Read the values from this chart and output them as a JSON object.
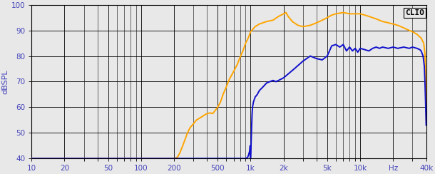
{
  "title": "",
  "ylabel": "dBSPL",
  "xlabel": "Hz",
  "clio_label": "CLIO",
  "xmin": 10,
  "xmax": 40000,
  "ymin": 40,
  "ymax": 100,
  "yticks": [
    40,
    50,
    60,
    70,
    80,
    90,
    100
  ],
  "xticks": [
    10,
    20,
    50,
    100,
    200,
    500,
    1000,
    2000,
    5000,
    10000,
    20000,
    40000
  ],
  "xticklabels": [
    "10",
    "20",
    "50",
    "100",
    "200",
    "500",
    "1k",
    "2k",
    "5k",
    "10k",
    "Hz",
    "40k"
  ],
  "background_color": "#e8e8e8",
  "grid_color": "#000000",
  "orange_color": "#FFA500",
  "blue_color": "#1010CC",
  "tick_color": "#4444BB",
  "clio_color": "#000000",
  "orange_linewidth": 1.4,
  "blue_linewidth": 1.4,
  "orange_data": [
    [
      10,
      40
    ],
    [
      150,
      40
    ],
    [
      200,
      40
    ],
    [
      215,
      40.5
    ],
    [
      225,
      42
    ],
    [
      235,
      44
    ],
    [
      250,
      47
    ],
    [
      265,
      50
    ],
    [
      280,
      52
    ],
    [
      300,
      53.5
    ],
    [
      320,
      55
    ],
    [
      350,
      56
    ],
    [
      380,
      57
    ],
    [
      400,
      57.5
    ],
    [
      430,
      57.8
    ],
    [
      450,
      57.5
    ],
    [
      470,
      58.5
    ],
    [
      500,
      60
    ],
    [
      530,
      62
    ],
    [
      560,
      65
    ],
    [
      600,
      68
    ],
    [
      640,
      71
    ],
    [
      680,
      73
    ],
    [
      720,
      75
    ],
    [
      760,
      77
    ],
    [
      800,
      79.5
    ],
    [
      850,
      82
    ],
    [
      900,
      85
    ],
    [
      950,
      87
    ],
    [
      1000,
      89.5
    ],
    [
      1100,
      91.5
    ],
    [
      1200,
      92.5
    ],
    [
      1400,
      93.5
    ],
    [
      1600,
      94
    ],
    [
      1800,
      95.5
    ],
    [
      2000,
      96.5
    ],
    [
      2100,
      97
    ],
    [
      2200,
      95.5
    ],
    [
      2400,
      93.5
    ],
    [
      2700,
      92
    ],
    [
      3000,
      91.5
    ],
    [
      3500,
      92
    ],
    [
      4000,
      93
    ],
    [
      4500,
      94
    ],
    [
      5000,
      95
    ],
    [
      5500,
      96
    ],
    [
      6000,
      96.5
    ],
    [
      7000,
      97
    ],
    [
      8000,
      96.5
    ],
    [
      9000,
      96.5
    ],
    [
      10000,
      96.5
    ],
    [
      11000,
      96
    ],
    [
      12000,
      95.5
    ],
    [
      14000,
      94.5
    ],
    [
      16000,
      93.5
    ],
    [
      18000,
      93
    ],
    [
      20000,
      92.5
    ],
    [
      22000,
      92
    ],
    [
      25000,
      91
    ],
    [
      28000,
      90
    ],
    [
      30000,
      89.5
    ],
    [
      33000,
      88.5
    ],
    [
      36000,
      87
    ],
    [
      38000,
      85
    ],
    [
      39000,
      81
    ],
    [
      39500,
      74
    ],
    [
      39800,
      65
    ],
    [
      40000,
      55
    ]
  ],
  "blue_data": [
    [
      10,
      40
    ],
    [
      850,
      40
    ],
    [
      900,
      40
    ],
    [
      920,
      40.2
    ],
    [
      940,
      40.5
    ],
    [
      960,
      41.5
    ],
    [
      980,
      43
    ],
    [
      990,
      45
    ],
    [
      995,
      40
    ],
    [
      1000,
      40
    ],
    [
      1005,
      42
    ],
    [
      1010,
      46
    ],
    [
      1020,
      52
    ],
    [
      1030,
      57
    ],
    [
      1040,
      60
    ],
    [
      1060,
      62
    ],
    [
      1080,
      63
    ],
    [
      1100,
      64
    ],
    [
      1150,
      65
    ],
    [
      1200,
      66.5
    ],
    [
      1300,
      68
    ],
    [
      1400,
      69.5
    ],
    [
      1500,
      70
    ],
    [
      1600,
      70.5
    ],
    [
      1700,
      70
    ],
    [
      1800,
      70.5
    ],
    [
      1900,
      71
    ],
    [
      2000,
      71.5
    ],
    [
      2200,
      73
    ],
    [
      2500,
      75
    ],
    [
      3000,
      78
    ],
    [
      3500,
      80
    ],
    [
      4000,
      79
    ],
    [
      4500,
      78.5
    ],
    [
      5000,
      80
    ],
    [
      5500,
      84
    ],
    [
      6000,
      84.5
    ],
    [
      6500,
      83.5
    ],
    [
      7000,
      84.5
    ],
    [
      7500,
      82
    ],
    [
      8000,
      83.5
    ],
    [
      8500,
      82
    ],
    [
      9000,
      83
    ],
    [
      9500,
      81.5
    ],
    [
      10000,
      83
    ],
    [
      11000,
      82.5
    ],
    [
      12000,
      82
    ],
    [
      13000,
      83
    ],
    [
      14000,
      83.5
    ],
    [
      15000,
      83
    ],
    [
      16000,
      83.5
    ],
    [
      18000,
      83
    ],
    [
      20000,
      83.5
    ],
    [
      22000,
      83
    ],
    [
      25000,
      83.5
    ],
    [
      28000,
      83
    ],
    [
      30000,
      83.5
    ],
    [
      33000,
      83
    ],
    [
      35000,
      82.5
    ],
    [
      36000,
      82
    ],
    [
      37500,
      80
    ],
    [
      38500,
      76
    ],
    [
      39000,
      70
    ],
    [
      39500,
      62
    ],
    [
      39800,
      57
    ],
    [
      40000,
      53
    ]
  ]
}
